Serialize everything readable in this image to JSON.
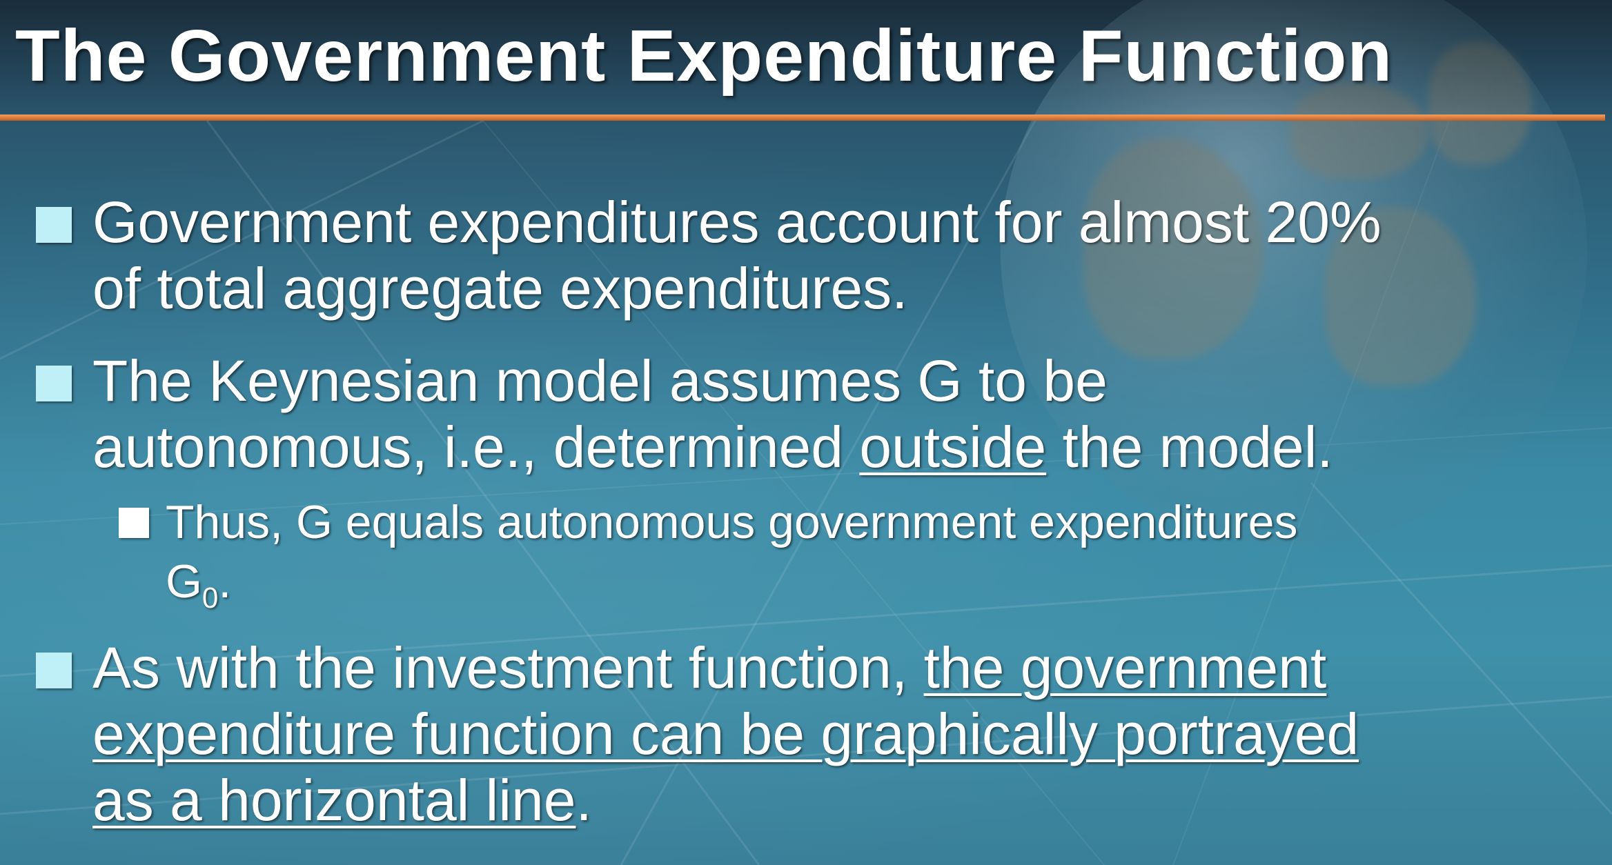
{
  "slide": {
    "title": "The Government Expenditure Function",
    "bullets": [
      {
        "line1": "Government expenditures account for almost 20%",
        "line2": "of total aggregate expenditures."
      },
      {
        "line1": "The Keynesian model assumes G to be",
        "line2_pre": "autonomous, i.e., determined ",
        "line2_underlined": "outside",
        "line2_post": " the model.",
        "sub": {
          "line1": "Thus, G equals autonomous government expenditures",
          "line2_base": "G",
          "line2_subscript": "0",
          "line2_end": "."
        }
      },
      {
        "line1_pre": "As with the investment function, ",
        "line1_underlined": "the government",
        "line2_underlined": "expenditure function can be graphically portrayed",
        "line3_underlined": "as a horizontal line",
        "line3_end": "."
      }
    ]
  },
  "colors": {
    "background_top": "#27455b",
    "background_mid": "#3a8aa6",
    "title_rule": "#d9783a",
    "bullet_level1": "#bff0f8",
    "bullet_level2": "#ffffff",
    "text": "#ffffff"
  }
}
